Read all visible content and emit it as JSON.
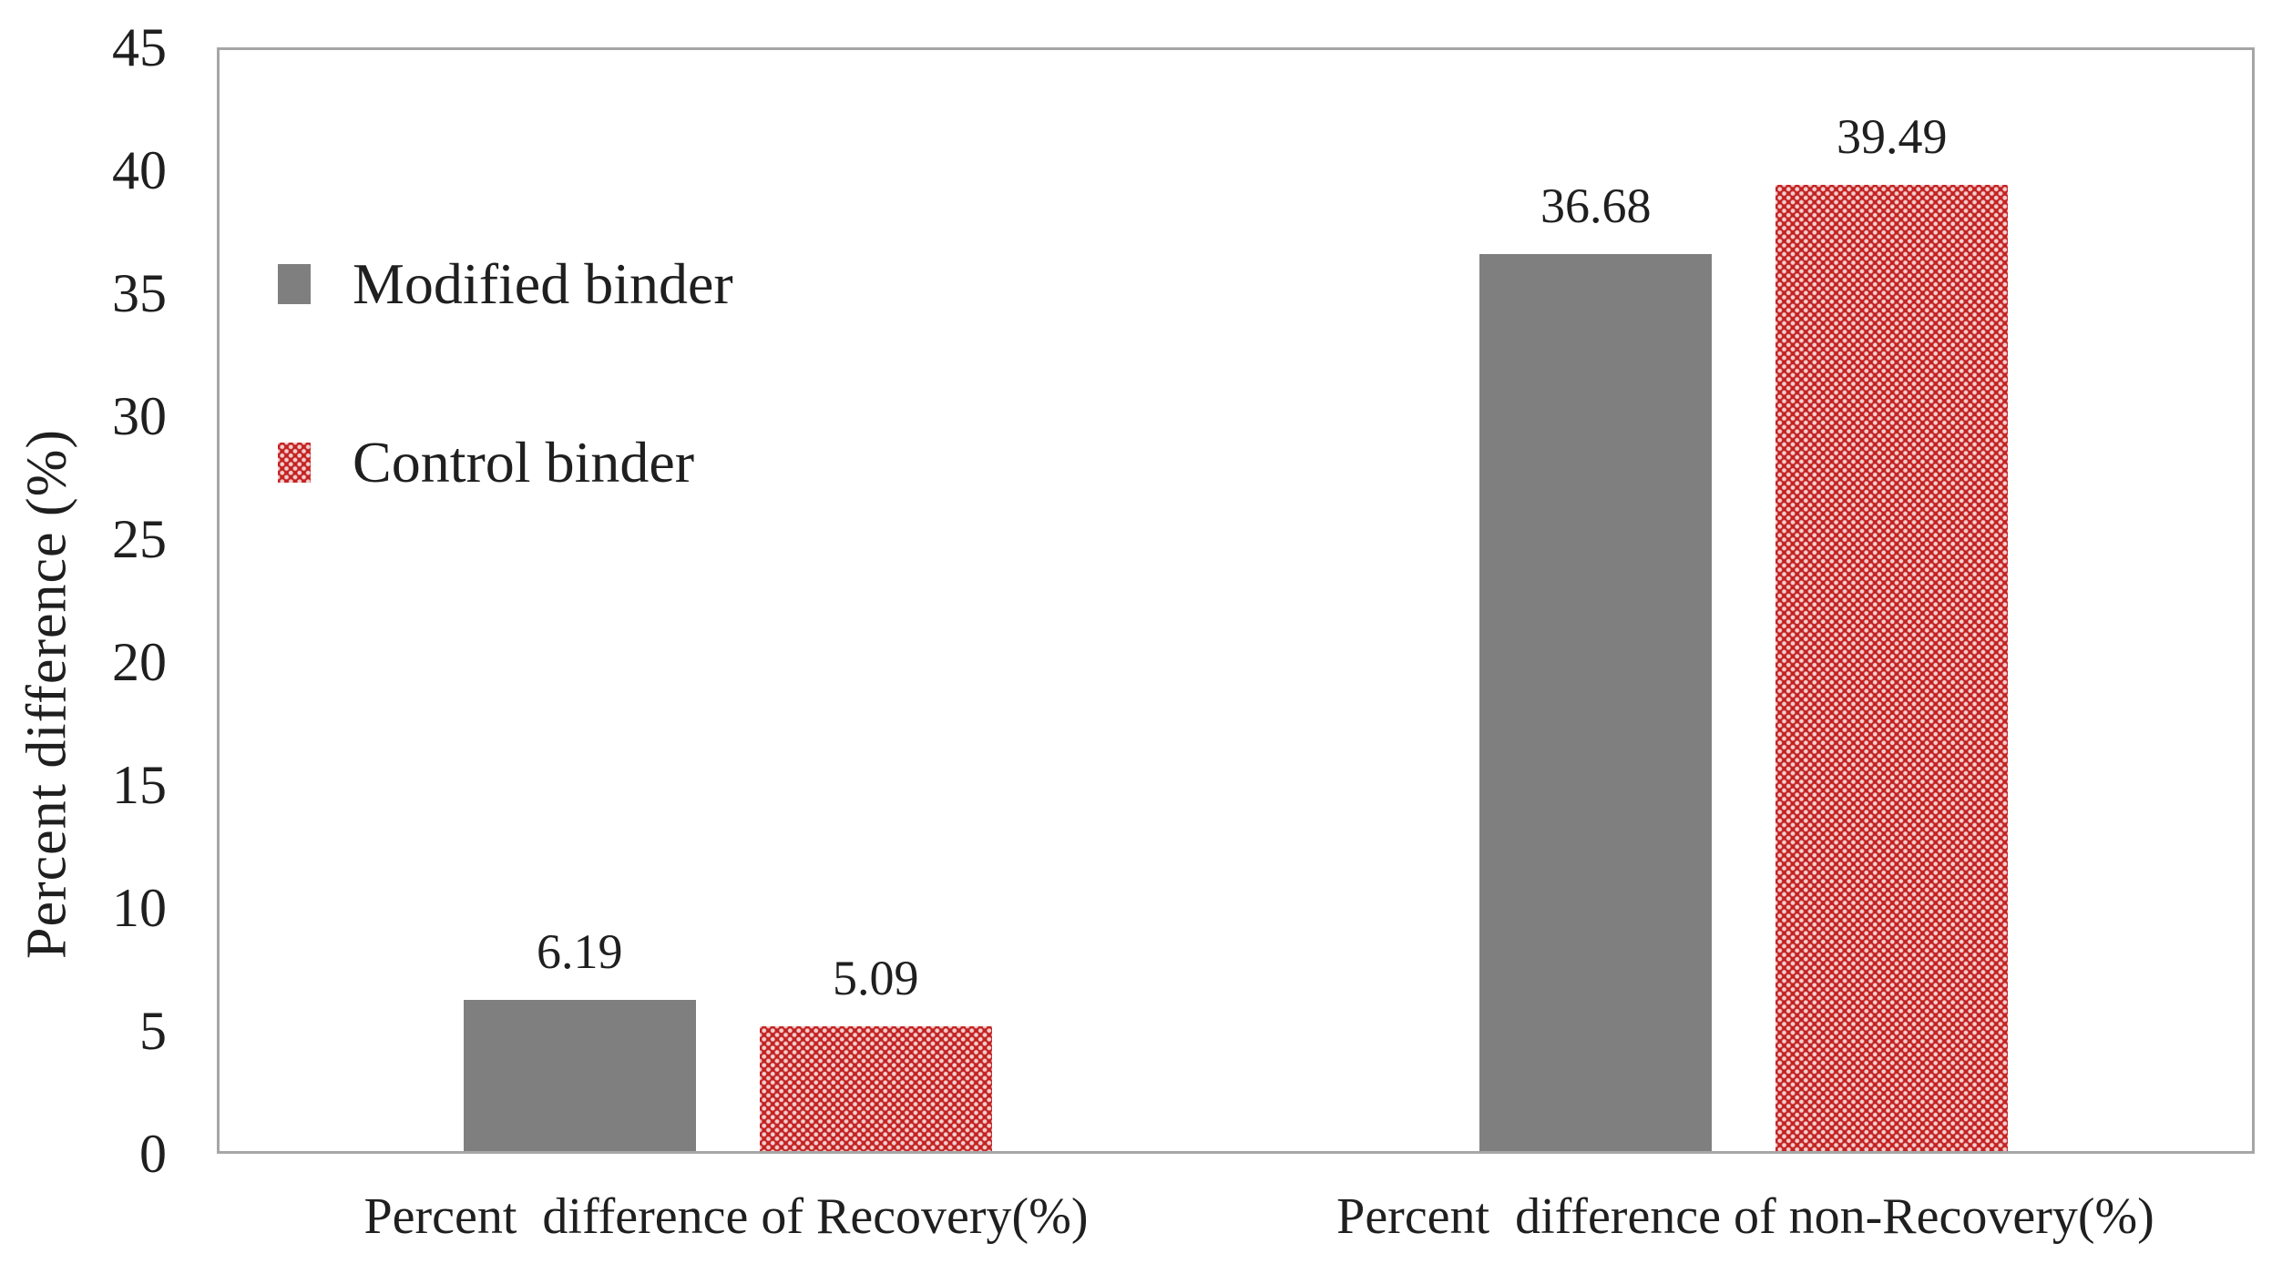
{
  "chart_data": {
    "type": "bar",
    "title": "",
    "xlabel": "",
    "ylabel": "Percent difference (%)",
    "ylim": [
      0,
      45
    ],
    "yticks": [
      45,
      40,
      35,
      30,
      25,
      20,
      15,
      10,
      5,
      0
    ],
    "grid": false,
    "legend_position": "inside-top-left",
    "categories": [
      "Percent  difference of Recovery(%)",
      "Percent  difference of non-Recovery(%)"
    ],
    "series": [
      {
        "name": "Modified binder",
        "color": "#7f7f7f",
        "pattern": "solid",
        "values": [
          6.19,
          36.68
        ]
      },
      {
        "name": "Control binder",
        "color": "#c32222",
        "pattern": "dotted",
        "values": [
          5.09,
          39.49
        ]
      }
    ],
    "value_labels": [
      "6.19",
      "5.09",
      "36.68",
      "39.49"
    ],
    "value_label_decimals": 2
  },
  "colors": {
    "background": "#ffffff",
    "plot_border": "#a6a6a6",
    "text": "#1f1f1f",
    "modified_binder": "#7f7f7f",
    "control_binder": "#c32222",
    "control_binder_dots": "#f0d3d3"
  }
}
